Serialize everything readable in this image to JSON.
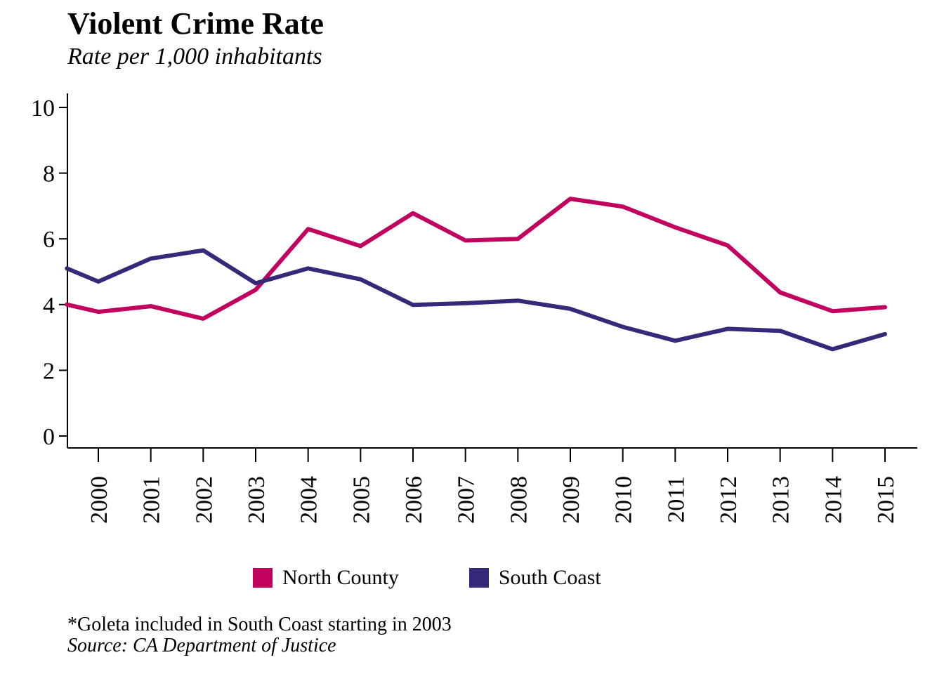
{
  "title": "Violent Crime Rate",
  "subtitle": "Rate per 1,000 inhabitants",
  "note": "*Goleta included in South Coast starting in 2003",
  "source": "Source: CA Department of Justice",
  "colors": {
    "north_county": "#C2005E",
    "south_coast": "#352A7A",
    "axis": "#000000"
  },
  "legend": [
    {
      "label": "North County",
      "color": "#C2005E"
    },
    {
      "label": "South Coast",
      "color": "#352A7A"
    }
  ],
  "chart_data": {
    "type": "line",
    "x": [
      "2000",
      "2001",
      "2002",
      "2003",
      "2004",
      "2005",
      "2006",
      "2007",
      "2008",
      "2009",
      "2010",
      "2011",
      "2012",
      "2013",
      "2014",
      "2015"
    ],
    "xmin": 1999.4,
    "xmax": 2015.6,
    "ylim": [
      -0.35,
      10.4
    ],
    "yticks": [
      0,
      2,
      4,
      6,
      8,
      10
    ],
    "series": [
      {
        "name": "North County",
        "color": "#C2005E",
        "values": [
          4.0,
          3.78,
          3.95,
          3.57,
          4.45,
          6.3,
          5.78,
          6.78,
          5.95,
          6.0,
          7.22,
          6.98,
          6.35,
          5.8,
          4.37,
          3.8,
          3.92
        ]
      },
      {
        "name": "South Coast",
        "color": "#352A7A",
        "values": [
          5.1,
          4.7,
          5.4,
          5.65,
          4.65,
          5.1,
          4.77,
          3.99,
          4.04,
          4.12,
          3.87,
          3.32,
          2.9,
          3.26,
          3.2,
          2.64,
          3.1
        ]
      }
    ],
    "x_values": [
      1999.4,
      2000,
      2001,
      2002,
      2003,
      2004,
      2005,
      2006,
      2007,
      2008,
      2009,
      2010,
      2011,
      2012,
      2013,
      2014,
      2015
    ],
    "grid": false,
    "legend_position": "bottom"
  }
}
